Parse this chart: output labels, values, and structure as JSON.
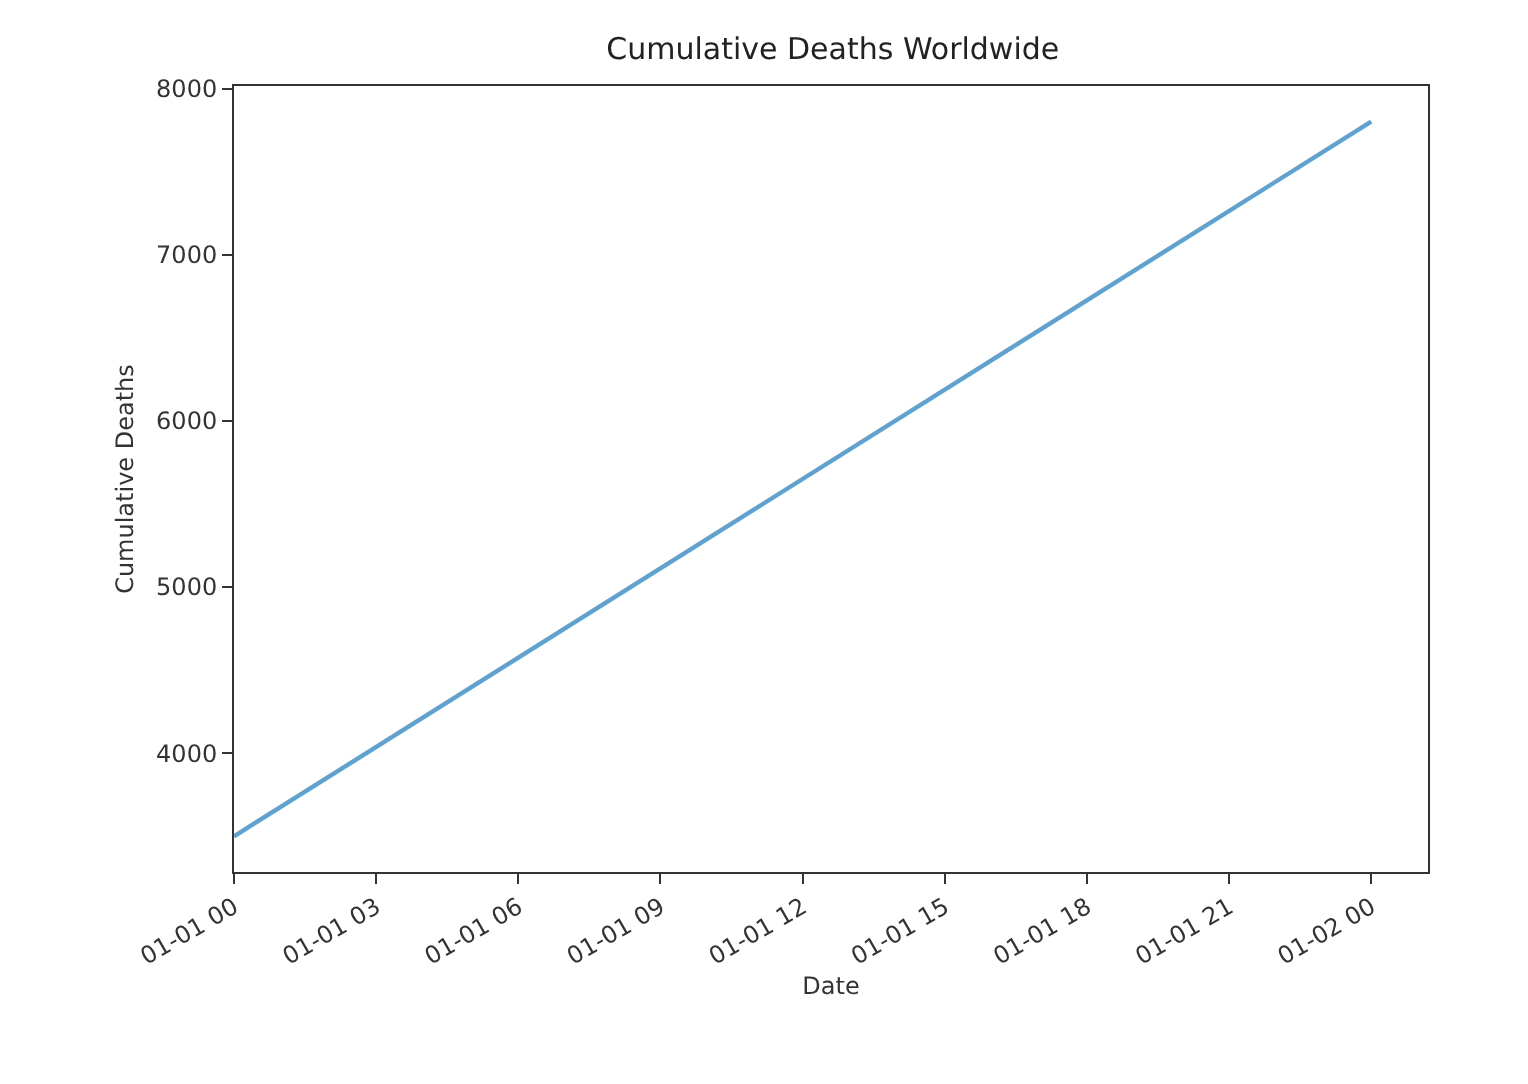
{
  "chart_data": {
    "type": "line",
    "title": "Cumulative Deaths Worldwide",
    "xlabel": "Date",
    "ylabel": "Cumulative Deaths",
    "x": [
      "--01-01T00:00",
      "--01-02T00:00"
    ],
    "series": [
      {
        "color": "#5fa2d0",
        "values": [
          3500,
          7800
        ]
      }
    ],
    "xlim": [
      "--01-01T00:00",
      "--01-02T01:12"
    ],
    "xticks": [
      {
        "value": "--01-01T00:00",
        "label": "01-01 00"
      },
      {
        "value": "--01-01T03:00",
        "label": "01-01 03"
      },
      {
        "value": "--01-01T06:00",
        "label": "01-01 06"
      },
      {
        "value": "--01-01T09:00",
        "label": "01-01 09"
      },
      {
        "value": "--01-01T12:00",
        "label": "01-01 12"
      },
      {
        "value": "--01-01T15:00",
        "label": "01-01 15"
      },
      {
        "value": "--01-01T18:00",
        "label": "01-01 18"
      },
      {
        "value": "--01-01T21:00",
        "label": "01-01 21"
      },
      {
        "value": "--01-02T00:00",
        "label": "01-02 00"
      }
    ],
    "ylim": [
      3285,
      8015
    ],
    "yticks": [
      4000,
      5000,
      6000,
      7000,
      8000
    ],
    "marker": "none",
    "line_style": "solid"
  }
}
